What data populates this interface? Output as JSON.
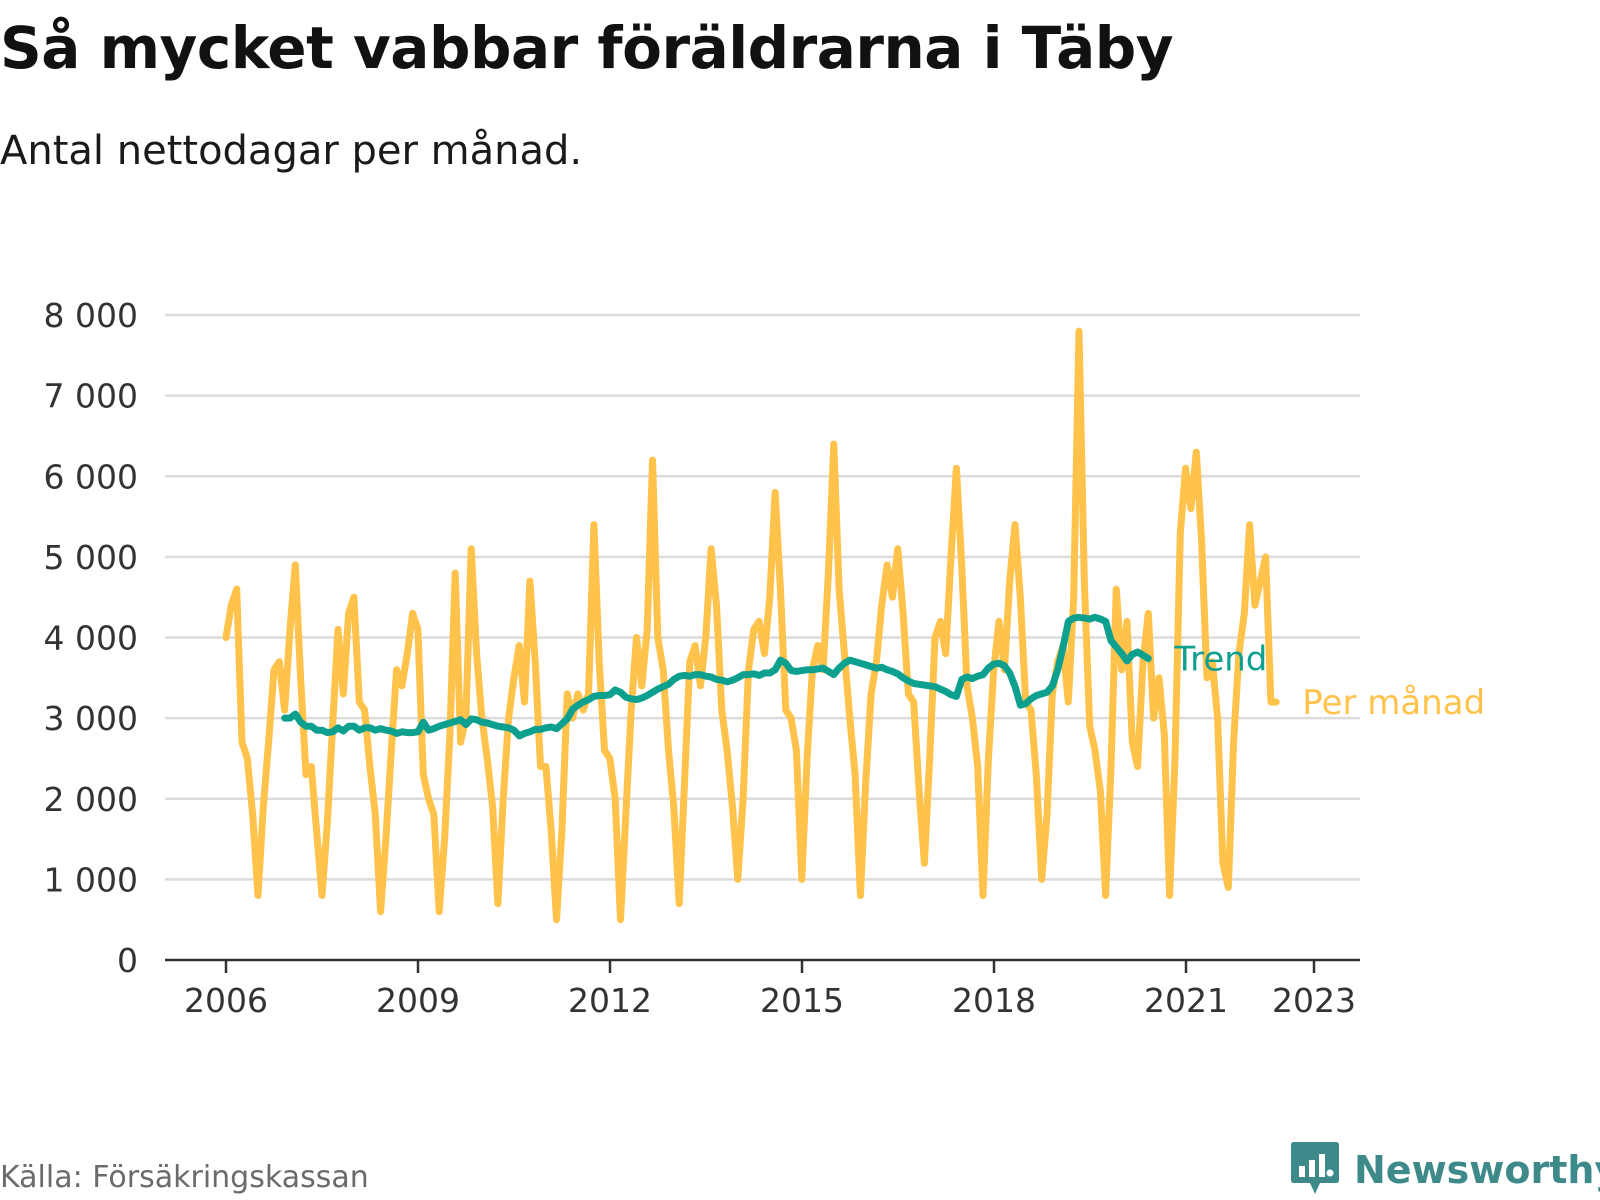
{
  "header": {
    "title": "Så mycket vabbar föräldrarna i Täby",
    "subtitle": "Antal nettodagar per månad."
  },
  "footer": {
    "source": "Källa: Försäkringskassan",
    "brand": "Newsworthy",
    "brand_icon": "bar-chart-speech-bubble-icon"
  },
  "colors": {
    "monthly": "#FFC24B",
    "trend": "#0EA08E",
    "grid": "#dcdcdc",
    "axis": "#333333"
  },
  "chart_data": {
    "type": "line",
    "title": "Så mycket vabbar föräldrarna i Täby",
    "subtitle": "Antal nettodagar per månad.",
    "x_unit": "decimal year",
    "xlim": [
      2006,
      2023.42
    ],
    "ylim": [
      0,
      8000
    ],
    "y_ticks": [
      0,
      1000,
      2000,
      3000,
      4000,
      5000,
      6000,
      7000,
      8000
    ],
    "y_tick_labels": [
      "0",
      "1 000",
      "2 000",
      "3 000",
      "4 000",
      "5 000",
      "6 000",
      "7 000",
      "8 000"
    ],
    "x_ticks": [
      2006,
      2009,
      2012,
      2015,
      2018,
      2021,
      2023
    ],
    "x_tick_labels": [
      "2006",
      "2009",
      "2012",
      "2015",
      "2018",
      "2021",
      "2023"
    ],
    "grid": "horizontal",
    "legend": "direct labels at line ends (right)",
    "series": [
      {
        "name": "Per månad",
        "color": "#FFC24B",
        "start": 2006,
        "step": 0.0833,
        "values": [
          4000,
          4400,
          4600,
          2700,
          2500,
          1800,
          800,
          1900,
          2700,
          3600,
          3700,
          3100,
          4100,
          4900,
          3500,
          2300,
          2400,
          1600,
          800,
          1700,
          2900,
          4100,
          3300,
          4300,
          4500,
          3200,
          3100,
          2400,
          1800,
          600,
          1500,
          2600,
          3600,
          3400,
          3800,
          4300,
          4100,
          2300,
          2000,
          1800,
          600,
          1500,
          2800,
          4800,
          2700,
          3000,
          5100,
          3800,
          3000,
          2500,
          1900,
          700,
          2000,
          3000,
          3500,
          3900,
          3200,
          4700,
          3700,
          2400,
          2400,
          1600,
          500,
          1600,
          3300,
          3000,
          3300,
          3100,
          3300,
          5400,
          3700,
          2600,
          2500,
          2000,
          500,
          1800,
          3100,
          4000,
          3400,
          4100,
          6200,
          4000,
          3600,
          2600,
          1900,
          700,
          2200,
          3700,
          3900,
          3400,
          4000,
          5100,
          4400,
          3100,
          2600,
          1900,
          1000,
          2000,
          3600,
          4100,
          4200,
          3800,
          4500,
          5800,
          4600,
          3100,
          3000,
          2600,
          1000,
          2500,
          3600,
          3900,
          3600,
          4800,
          6400,
          4600,
          3800,
          3000,
          2300,
          800,
          2200,
          3300,
          3700,
          4400,
          4900,
          4500,
          5100,
          4300,
          3300,
          3200,
          2100,
          1200,
          2500,
          4000,
          4200,
          3800,
          5000,
          6100,
          4900,
          3400,
          3000,
          2400,
          800,
          2500,
          3600,
          4200,
          3600,
          4700,
          5400,
          4500,
          3200,
          3100,
          2300,
          1000,
          1800,
          3300,
          3700,
          3900,
          3200,
          4500,
          7800,
          4700,
          2900,
          2600,
          2100,
          800,
          2400,
          4600,
          3600,
          4200,
          2700,
          2400,
          3700,
          4300,
          3000,
          3500,
          2800,
          800,
          2500,
          5300,
          6100,
          5600,
          6300,
          5200,
          3500,
          3700,
          3000,
          1200,
          900,
          2700,
          3800,
          4300,
          5400,
          4400,
          4700,
          5000,
          3200,
          3200
        ]
      },
      {
        "name": "Trend",
        "color": "#0EA08E",
        "start": 2006.917,
        "step": 0.0833,
        "values": [
          3000,
          3000,
          3050,
          2950,
          2900,
          2900,
          2850,
          2850,
          2820,
          2830,
          2880,
          2840,
          2900,
          2900,
          2850,
          2880,
          2880,
          2850,
          2870,
          2850,
          2840,
          2810,
          2830,
          2820,
          2820,
          2830,
          2950,
          2850,
          2870,
          2900,
          2920,
          2940,
          2960,
          2980,
          2920,
          2990,
          2980,
          2950,
          2940,
          2920,
          2900,
          2890,
          2880,
          2850,
          2780,
          2810,
          2830,
          2860,
          2860,
          2880,
          2890,
          2870,
          2930,
          2990,
          3110,
          3160,
          3200,
          3230,
          3270,
          3280,
          3280,
          3290,
          3350,
          3320,
          3260,
          3240,
          3230,
          3250,
          3280,
          3320,
          3360,
          3390,
          3420,
          3480,
          3520,
          3530,
          3520,
          3540,
          3540,
          3520,
          3510,
          3480,
          3470,
          3450,
          3470,
          3500,
          3540,
          3540,
          3550,
          3530,
          3560,
          3560,
          3600,
          3720,
          3680,
          3590,
          3580,
          3590,
          3600,
          3600,
          3610,
          3620,
          3580,
          3540,
          3620,
          3680,
          3720,
          3700,
          3680,
          3660,
          3640,
          3620,
          3630,
          3600,
          3580,
          3550,
          3500,
          3460,
          3430,
          3420,
          3410,
          3400,
          3390,
          3360,
          3330,
          3290,
          3270,
          3480,
          3510,
          3490,
          3520,
          3540,
          3620,
          3670,
          3680,
          3650,
          3560,
          3390,
          3160,
          3180,
          3240,
          3280,
          3300,
          3320,
          3400,
          3600,
          3880,
          4200,
          4240,
          4250,
          4240,
          4230,
          4250,
          4230,
          4200,
          3960,
          3880,
          3800,
          3710,
          3790,
          3820,
          3780,
          3740
        ]
      }
    ]
  }
}
